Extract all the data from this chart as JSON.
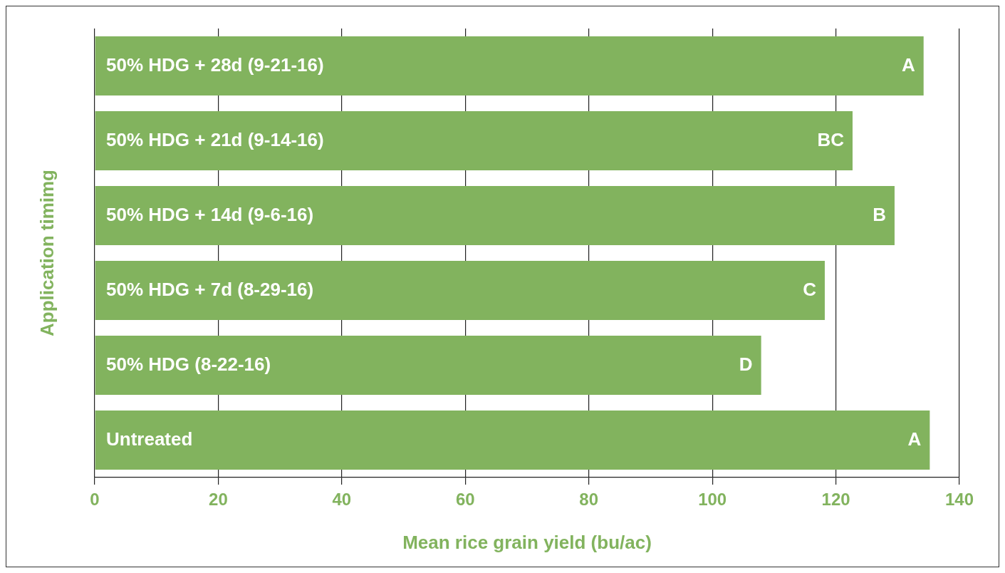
{
  "chart_data": {
    "type": "bar",
    "orientation": "horizontal",
    "categories": [
      "50% HDG + 28d (9-21-16)",
      "50% HDG + 21d (9-14-16)",
      "50% HDG + 14d (9-6-16)",
      "50% HDG + 7d (8-29-16)",
      "50% HDG (8-22-16)",
      "Untreated"
    ],
    "values": [
      134.2,
      122.7,
      129.5,
      118.2,
      107.9,
      135.2
    ],
    "color": "#82b35e",
    "xlim": [
      0,
      140
    ],
    "xticks": [
      0,
      20,
      40,
      60,
      80,
      100,
      120,
      140
    ],
    "xlabel": "Mean rice grain yield (bu/ac)",
    "ylabel": "Application timimg",
    "grid": "x",
    "legend": false,
    "annotations": [
      {
        "text": "A",
        "x": 134.2,
        "y": "50% HDG + 28d (9-21-16)"
      },
      {
        "text": "BC",
        "x": 122.7,
        "y": "50% HDG + 21d (9-14-16)"
      },
      {
        "text": "B",
        "x": 129.5,
        "y": "50% HDG + 14d (9-6-16)"
      },
      {
        "text": "C",
        "x": 118.2,
        "y": "50% HDG + 7d (8-29-16)"
      },
      {
        "text": "D",
        "x": 107.9,
        "y": "50% HDG (8-22-16)"
      },
      {
        "text": "A",
        "x": 135.2,
        "y": "Untreated"
      }
    ]
  }
}
